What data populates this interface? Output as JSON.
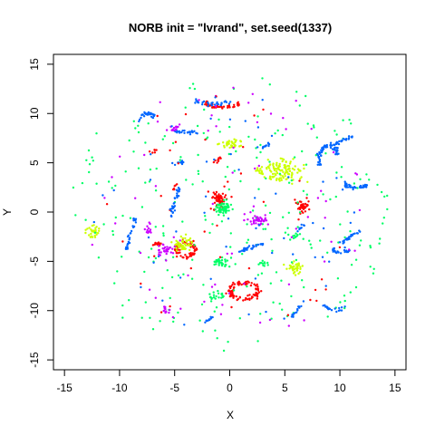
{
  "chart_data": {
    "type": "scatter",
    "title": "NORB init = \"lvrand\", set.seed(1337)",
    "xlabel": "X",
    "ylabel": "Y",
    "xlim": [
      -16,
      16
    ],
    "ylim": [
      -16,
      16
    ],
    "xticks": [
      -15,
      -10,
      -5,
      0,
      5,
      10,
      15
    ],
    "yticks": [
      -15,
      -10,
      -5,
      0,
      5,
      10,
      15
    ],
    "xtick_labels": [
      "-15",
      "-10",
      "-5",
      "0",
      "5",
      "10",
      "15"
    ],
    "ytick_labels": [
      "-15",
      "-10",
      "-5",
      "0",
      "5",
      "10",
      "15"
    ],
    "grid": false,
    "legend": "none",
    "colors": {
      "red": "#ff0000",
      "yellow": "#ccff00",
      "green": "#00ff66",
      "blue": "#0066ff",
      "magenta": "#cc00ff"
    },
    "clusters": [
      {
        "color": "red",
        "shape": "ring",
        "cx": -4.0,
        "cy": -3.8,
        "rx": 0.9,
        "ry": 0.7,
        "n": 70
      },
      {
        "color": "red",
        "shape": "ring",
        "cx": 1.3,
        "cy": -8.0,
        "rx": 1.3,
        "ry": 0.8,
        "n": 90
      },
      {
        "color": "red",
        "shape": "arc",
        "cx": -0.6,
        "cy": 11.2,
        "rx": 1.6,
        "ry": 0.9,
        "n": 50
      },
      {
        "color": "red",
        "shape": "blob",
        "cx": -1.0,
        "cy": 1.2,
        "rx": 0.6,
        "ry": 0.8,
        "n": 60
      },
      {
        "color": "red",
        "shape": "blob",
        "cx": 6.7,
        "cy": 0.6,
        "rx": 0.6,
        "ry": 0.6,
        "n": 40
      },
      {
        "color": "red",
        "shape": "blob",
        "cx": -6.6,
        "cy": -3.3,
        "rx": 0.3,
        "ry": 0.4,
        "n": 15
      },
      {
        "color": "red",
        "shape": "line",
        "cx": -1.2,
        "cy": 5.1,
        "rx": 0.4,
        "ry": 0.5,
        "n": 10
      },
      {
        "color": "red",
        "shape": "line",
        "cx": -7.0,
        "cy": 6.2,
        "rx": 0.3,
        "ry": 0.1,
        "n": 6
      },
      {
        "color": "red",
        "shape": "line",
        "cx": -5.0,
        "cy": 2.5,
        "rx": 0.2,
        "ry": 0.3,
        "n": 6
      },
      {
        "color": "yellow",
        "shape": "blob",
        "cx": 4.8,
        "cy": 4.2,
        "rx": 1.6,
        "ry": 1.0,
        "n": 110
      },
      {
        "color": "yellow",
        "shape": "blob",
        "cx": 0.1,
        "cy": 7.0,
        "rx": 0.8,
        "ry": 0.5,
        "n": 40
      },
      {
        "color": "yellow",
        "shape": "blob",
        "cx": -12.5,
        "cy": -2.0,
        "rx": 0.6,
        "ry": 0.5,
        "n": 30
      },
      {
        "color": "yellow",
        "shape": "blob",
        "cx": 6.0,
        "cy": -5.6,
        "rx": 0.6,
        "ry": 0.6,
        "n": 40
      },
      {
        "color": "yellow",
        "shape": "blob",
        "cx": -4.2,
        "cy": -3.3,
        "rx": 0.9,
        "ry": 0.7,
        "n": 50
      },
      {
        "color": "yellow",
        "shape": "blob",
        "cx": 2.8,
        "cy": 4.2,
        "rx": 0.6,
        "ry": 0.3,
        "n": 15
      },
      {
        "color": "green",
        "shape": "blob",
        "cx": -0.6,
        "cy": 0.4,
        "rx": 0.8,
        "ry": 0.6,
        "n": 60
      },
      {
        "color": "green",
        "shape": "blob",
        "cx": -0.8,
        "cy": -5.1,
        "rx": 0.9,
        "ry": 0.5,
        "n": 30
      },
      {
        "color": "green",
        "shape": "blob",
        "cx": 3.0,
        "cy": -5.3,
        "rx": 0.5,
        "ry": 0.3,
        "n": 12
      },
      {
        "color": "green",
        "shape": "blob",
        "cx": -1.2,
        "cy": -8.5,
        "rx": 0.8,
        "ry": 0.4,
        "n": 20
      },
      {
        "color": "green",
        "shape": "blob",
        "cx": 5.9,
        "cy": -2.4,
        "rx": 0.4,
        "ry": 0.3,
        "n": 10
      },
      {
        "color": "green",
        "shape": "scatter",
        "cx": 0.0,
        "cy": 0.0,
        "rx": 14.5,
        "ry": 14.5,
        "n": 260
      },
      {
        "color": "blue",
        "shape": "arc",
        "cx": 9.0,
        "cy": 5.0,
        "rx": 0.9,
        "ry": 1.8,
        "n": 60
      },
      {
        "color": "blue",
        "shape": "arc",
        "cx": 11.5,
        "cy": 2.8,
        "rx": 1.0,
        "ry": 0.5,
        "n": 45
      },
      {
        "color": "blue",
        "shape": "arc",
        "cx": -1.3,
        "cy": 11.3,
        "rx": 1.8,
        "ry": 0.6,
        "n": 30
      },
      {
        "color": "blue",
        "shape": "arc",
        "cx": -7.5,
        "cy": 9.2,
        "rx": 0.7,
        "ry": 0.8,
        "n": 30
      },
      {
        "color": "blue",
        "shape": "arc",
        "cx": -4.0,
        "cy": 8.3,
        "rx": 0.9,
        "ry": 0.4,
        "n": 25
      },
      {
        "color": "blue",
        "shape": "line",
        "cx": -5.0,
        "cy": 1.0,
        "rx": 0.4,
        "ry": 1.5,
        "n": 35
      },
      {
        "color": "blue",
        "shape": "line",
        "cx": -9.0,
        "cy": -2.2,
        "rx": 0.4,
        "ry": 1.6,
        "n": 35
      },
      {
        "color": "blue",
        "shape": "line",
        "cx": 10.4,
        "cy": 7.3,
        "rx": 0.8,
        "ry": 0.4,
        "n": 20
      },
      {
        "color": "blue",
        "shape": "line",
        "cx": 11.0,
        "cy": -2.5,
        "rx": 0.8,
        "ry": 0.7,
        "n": 30
      },
      {
        "color": "blue",
        "shape": "arc",
        "cx": 10.2,
        "cy": -3.8,
        "rx": 0.8,
        "ry": 0.4,
        "n": 20
      },
      {
        "color": "blue",
        "shape": "line",
        "cx": 2.0,
        "cy": -3.6,
        "rx": 1.2,
        "ry": 0.4,
        "n": 30
      },
      {
        "color": "blue",
        "shape": "arc",
        "cx": 9.5,
        "cy": -9.5,
        "rx": 0.9,
        "ry": 0.6,
        "n": 20
      },
      {
        "color": "blue",
        "shape": "line",
        "cx": 6.0,
        "cy": -10.1,
        "rx": 0.4,
        "ry": 0.6,
        "n": 15
      },
      {
        "color": "blue",
        "shape": "line",
        "cx": 3.3,
        "cy": 6.8,
        "rx": 0.3,
        "ry": 0.4,
        "n": 12
      },
      {
        "color": "blue",
        "shape": "line",
        "cx": -1.9,
        "cy": -10.9,
        "rx": 0.3,
        "ry": 0.3,
        "n": 10
      },
      {
        "color": "blue",
        "shape": "line",
        "cx": 6.5,
        "cy": -1.5,
        "rx": 0.3,
        "ry": 0.3,
        "n": 8
      },
      {
        "color": "blue",
        "shape": "line",
        "cx": -4.5,
        "cy": 5.0,
        "rx": 0.4,
        "ry": 0.2,
        "n": 10
      },
      {
        "color": "magenta",
        "shape": "blob",
        "cx": 2.5,
        "cy": -0.8,
        "rx": 1.0,
        "ry": 0.5,
        "n": 40
      },
      {
        "color": "magenta",
        "shape": "blob",
        "cx": -5.8,
        "cy": -3.8,
        "rx": 0.7,
        "ry": 0.6,
        "n": 30
      },
      {
        "color": "magenta",
        "shape": "blob",
        "cx": -5.0,
        "cy": 8.5,
        "rx": 0.6,
        "ry": 0.4,
        "n": 15
      },
      {
        "color": "magenta",
        "shape": "blob",
        "cx": -7.3,
        "cy": -1.8,
        "rx": 0.4,
        "ry": 0.4,
        "n": 12
      },
      {
        "color": "magenta",
        "shape": "blob",
        "cx": -5.8,
        "cy": -10.0,
        "rx": 0.5,
        "ry": 0.3,
        "n": 12
      },
      {
        "color": "magenta",
        "shape": "scatter",
        "cx": 0.0,
        "cy": 0.0,
        "rx": 13.0,
        "ry": 13.0,
        "n": 70
      },
      {
        "color": "red",
        "shape": "scatter",
        "cx": 0.0,
        "cy": 0.0,
        "rx": 12.0,
        "ry": 12.0,
        "n": 40
      },
      {
        "color": "blue",
        "shape": "scatter",
        "cx": 0.0,
        "cy": 0.0,
        "rx": 12.5,
        "ry": 12.5,
        "n": 60
      }
    ]
  }
}
